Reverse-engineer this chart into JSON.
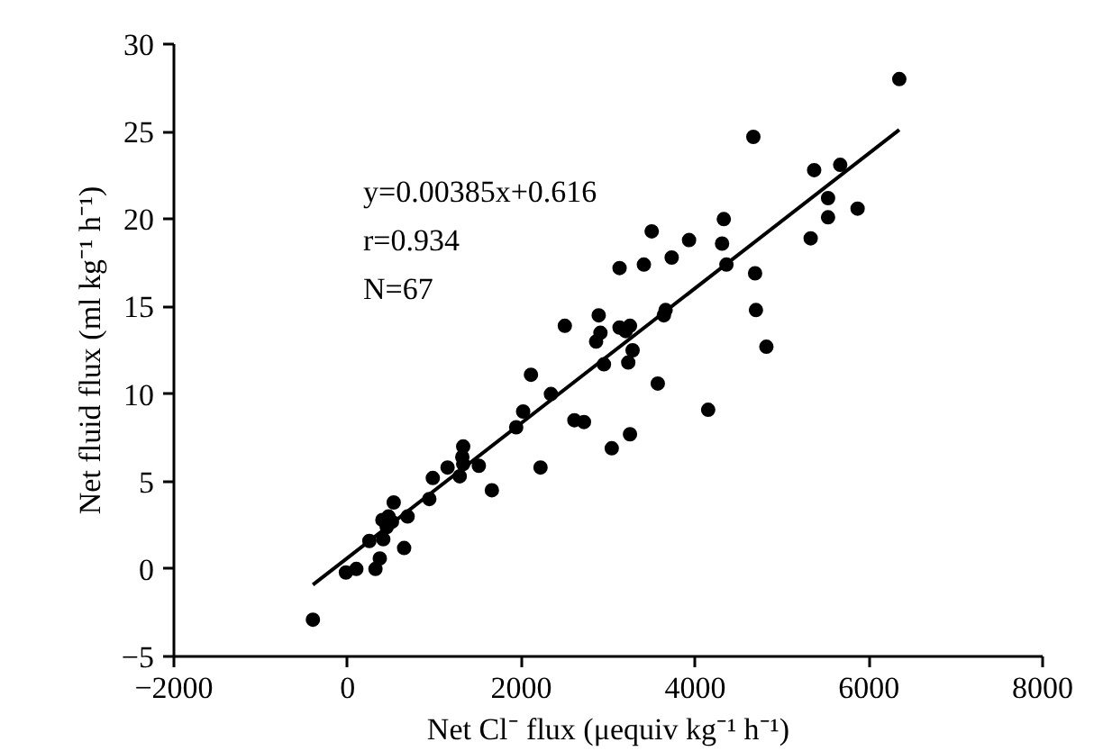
{
  "chart_data": {
    "type": "scatter",
    "xlabel": "Net Cl⁻ flux (μequiv kg⁻¹ h⁻¹)",
    "ylabel": "Net fluid flux (ml kg⁻¹ h⁻¹)",
    "annotations": [
      "y=0.00385x+0.616",
      "r=0.934",
      "N=67"
    ],
    "xlim": [
      -2000,
      8000
    ],
    "ylim": [
      -5,
      30
    ],
    "xticks": [
      {
        "value": -2000,
        "label": "−2000"
      },
      0,
      2000,
      4000,
      6000,
      8000
    ],
    "yticks": [
      {
        "value": -5,
        "label": "−5"
      },
      0,
      5,
      10,
      15,
      20,
      25,
      30
    ],
    "grid": false,
    "series": [
      {
        "marker": "circle",
        "color": "#000000",
        "x": [
          -400,
          -20,
          100,
          320,
          370,
          250,
          410,
          650,
          400,
          470,
          450,
          510,
          530,
          690,
          940,
          980,
          1150,
          1290,
          1330,
          1320,
          1330,
          1510,
          1660,
          1940,
          2020,
          2110,
          2220,
          2340,
          2500,
          2610,
          2720,
          2860,
          2890,
          2910,
          2950,
          3040,
          3130,
          3130,
          3200,
          3250,
          3230,
          3280,
          3250,
          3410,
          3500,
          3570,
          3640,
          3660,
          3730,
          3930,
          4150,
          4310,
          4330,
          4360,
          4670,
          4690,
          4700,
          4820,
          5330,
          5370,
          5530,
          5530,
          5670,
          5870,
          6350
        ],
        "values": [
          -2.9,
          -0.2,
          0,
          0,
          0.6,
          1.6,
          1.7,
          1.2,
          2.8,
          3.0,
          2.4,
          2.7,
          3.8,
          3.0,
          4.0,
          5.2,
          5.8,
          5.3,
          7.0,
          6.4,
          6.0,
          5.9,
          4.5,
          8.1,
          9.0,
          11.1,
          5.8,
          10.0,
          13.9,
          8.5,
          8.4,
          13.0,
          14.5,
          13.5,
          11.7,
          6.9,
          17.2,
          13.8,
          13.6,
          13.9,
          11.8,
          12.5,
          7.7,
          17.4,
          19.3,
          10.6,
          14.5,
          14.8,
          17.8,
          18.8,
          9.1,
          18.6,
          20.0,
          17.4,
          24.7,
          16.9,
          14.8,
          12.7,
          18.9,
          22.8,
          21.2,
          20.1,
          23.1,
          20.6,
          28.0
        ]
      },
      {
        "type": "line",
        "color": "#000000",
        "line_style": "solid",
        "x": [
          -400,
          6350
        ],
        "values": [
          -0.9,
          25.1
        ]
      }
    ]
  }
}
